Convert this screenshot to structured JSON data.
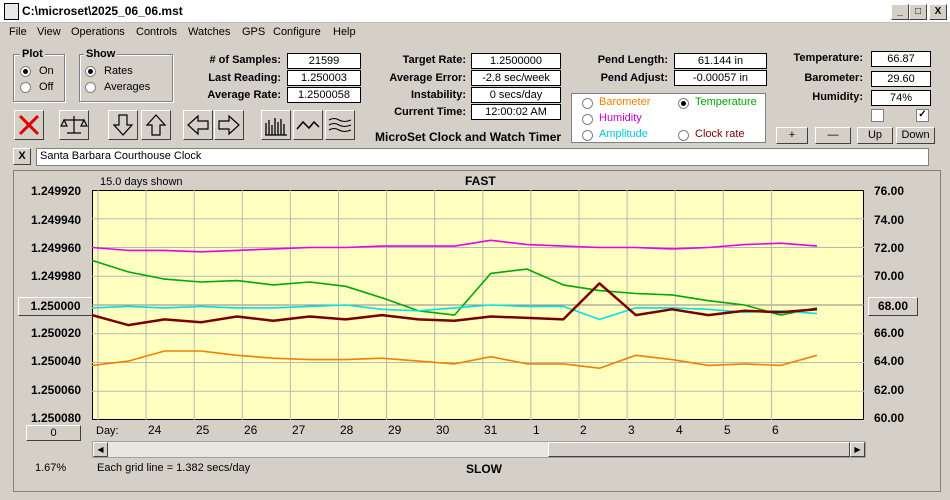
{
  "window": {
    "title": "C:\\microset\\2025_06_06.mst",
    "minimize": "_",
    "maximize": "□",
    "close": "X"
  },
  "menu": [
    "File",
    "View",
    "Operations",
    "Controls",
    "Watches",
    "GPS",
    "Configure",
    "Help"
  ],
  "plot_group": {
    "title": "Plot",
    "on": "On",
    "off": "Off",
    "selected": "On"
  },
  "show_group": {
    "title": "Show",
    "rates": "Rates",
    "averages": "Averages",
    "selected": "Rates"
  },
  "stats": {
    "samples_label": "# of Samples:",
    "samples": "21599",
    "last_reading_label": "Last Reading:",
    "last_reading": "1.250003",
    "average_rate_label": "Average Rate:",
    "average_rate": "1.2500058"
  },
  "targets": {
    "target_rate_label": "Target Rate:",
    "target_rate": "1.2500000",
    "average_error_label": "Average Error:",
    "average_error": "-2.8 sec/week",
    "instability_label": "Instability:",
    "instability": "0 secs/day",
    "current_time_label": "Current Time:",
    "current_time": "12:00:02 AM",
    "subtitle": "MicroSet Clock and Watch Timer"
  },
  "pendulum": {
    "length_label": "Pend Length:",
    "length": "61.144 in",
    "adjust_label": "Pend Adjust:",
    "adjust": "-0.00057 in"
  },
  "series_options": {
    "barometer": "Barometer",
    "temperature": "Temperature",
    "humidity": "Humidity",
    "amplitude": "Amplitude",
    "clock_rate": "Clock rate",
    "selected": "Temperature"
  },
  "environment": {
    "temperature_label": "Temperature:",
    "temperature": "66.87",
    "barometer_label": "Barometer:",
    "barometer": "29.60",
    "humidity_label": "Humidity:",
    "humidity": "74%",
    "check1": false,
    "check2": true
  },
  "scale_buttons": {
    "plus": "+",
    "minus": "—",
    "up": "Up",
    "down": "Down"
  },
  "clear_button": "X",
  "clock_name": "Santa Barbara Courthouse Clock",
  "chart_header": {
    "days_shown": "15.0 days shown",
    "fast": "FAST",
    "slow": "SLOW",
    "grid_note": "Each grid line = 1.382 secs/day",
    "percent": "1.67%",
    "day_label": "Day:"
  },
  "left_center_button": "1.250000",
  "right_center_button": "68.00",
  "zero_button": "0",
  "colors": {
    "plot_bg": "#ffffc0",
    "humidity": "#e800e8",
    "temperature": "#00a800",
    "amplitude": "#00e0e8",
    "clock_rate": "#7a0000",
    "barometer": "#f08000",
    "grid": "#b8b8b8"
  },
  "chart_data": {
    "type": "line",
    "x_label": "Day",
    "x_ticks": [
      "24",
      "25",
      "26",
      "27",
      "28",
      "29",
      "30",
      "31",
      "1",
      "2",
      "3",
      "4",
      "5",
      "6"
    ],
    "y_left_ticks": [
      "1.249920",
      "1.249940",
      "1.249960",
      "1.249980",
      "1.250000",
      "1.250020",
      "1.250040",
      "1.250060",
      "1.250080"
    ],
    "y_right_ticks": [
      "76.00",
      "74.00",
      "72.00",
      "70.00",
      "68.00",
      "66.00",
      "64.00",
      "62.00",
      "60.00"
    ],
    "y_right_range": [
      60,
      76
    ],
    "series": [
      {
        "name": "Humidity",
        "color": "#e800e8",
        "values": [
          72.0,
          71.8,
          71.8,
          71.7,
          71.8,
          71.9,
          72.0,
          72.0,
          72.1,
          72.1,
          72.1,
          72.5,
          72.2,
          72.1,
          72.0,
          72.0,
          71.9,
          72.0,
          72.2,
          72.3,
          72.1
        ]
      },
      {
        "name": "Temperature",
        "color": "#00a800",
        "values": [
          71.1,
          70.3,
          69.8,
          69.6,
          69.7,
          69.4,
          69.6,
          69.3,
          68.5,
          67.6,
          67.3,
          70.2,
          70.5,
          69.4,
          69.0,
          68.8,
          68.7,
          68.3,
          68.0,
          67.3,
          67.8
        ]
      },
      {
        "name": "Amplitude",
        "color": "#00e0e8",
        "values": [
          67.8,
          67.9,
          67.8,
          67.9,
          67.8,
          67.8,
          67.9,
          68.0,
          67.7,
          67.6,
          67.8,
          68.0,
          67.9,
          67.9,
          67.0,
          67.8,
          67.8,
          67.7,
          67.5,
          67.6,
          67.4
        ]
      },
      {
        "name": "Clock rate",
        "color": "#7a0000",
        "values": [
          67.3,
          66.6,
          67.0,
          66.8,
          67.2,
          66.9,
          67.2,
          67.0,
          67.3,
          67.0,
          66.9,
          67.2,
          67.1,
          67.0,
          69.5,
          67.3,
          67.7,
          67.3,
          67.6,
          67.5,
          67.7
        ]
      },
      {
        "name": "Barometer",
        "color": "#f08000",
        "values": [
          63.8,
          64.1,
          64.8,
          64.8,
          64.5,
          64.3,
          64.2,
          64.2,
          64.3,
          64.1,
          63.9,
          64.4,
          63.9,
          63.9,
          63.6,
          64.5,
          64.2,
          63.8,
          63.9,
          63.8,
          64.5
        ]
      }
    ]
  }
}
